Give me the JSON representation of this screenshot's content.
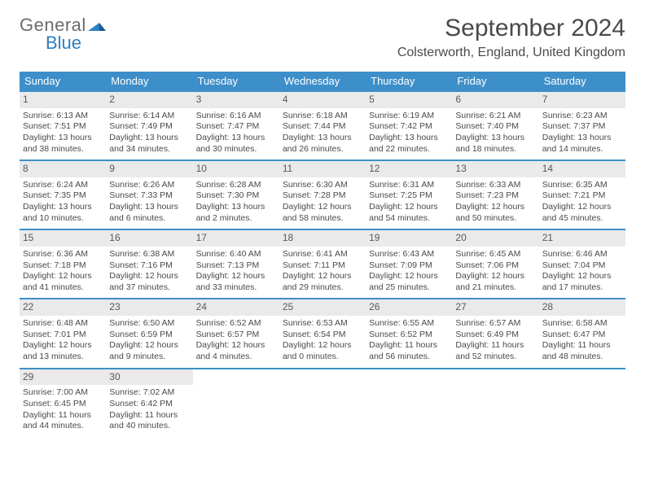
{
  "brand": {
    "top": "General",
    "bottom": "Blue"
  },
  "title": "September 2024",
  "location": "Colsterworth, England, United Kingdom",
  "colors": {
    "accent": "#3d8fc9",
    "header_bg": "#3d8fc9",
    "day_bg": "#eaeaea",
    "text": "#4a4a4a",
    "brand_blue": "#2f7fc2"
  },
  "days_of_week": [
    "Sunday",
    "Monday",
    "Tuesday",
    "Wednesday",
    "Thursday",
    "Friday",
    "Saturday"
  ],
  "weeks": [
    [
      {
        "n": "1",
        "sr": "Sunrise: 6:13 AM",
        "ss": "Sunset: 7:51 PM",
        "dl1": "Daylight: 13 hours",
        "dl2": "and 38 minutes."
      },
      {
        "n": "2",
        "sr": "Sunrise: 6:14 AM",
        "ss": "Sunset: 7:49 PM",
        "dl1": "Daylight: 13 hours",
        "dl2": "and 34 minutes."
      },
      {
        "n": "3",
        "sr": "Sunrise: 6:16 AM",
        "ss": "Sunset: 7:47 PM",
        "dl1": "Daylight: 13 hours",
        "dl2": "and 30 minutes."
      },
      {
        "n": "4",
        "sr": "Sunrise: 6:18 AM",
        "ss": "Sunset: 7:44 PM",
        "dl1": "Daylight: 13 hours",
        "dl2": "and 26 minutes."
      },
      {
        "n": "5",
        "sr": "Sunrise: 6:19 AM",
        "ss": "Sunset: 7:42 PM",
        "dl1": "Daylight: 13 hours",
        "dl2": "and 22 minutes."
      },
      {
        "n": "6",
        "sr": "Sunrise: 6:21 AM",
        "ss": "Sunset: 7:40 PM",
        "dl1": "Daylight: 13 hours",
        "dl2": "and 18 minutes."
      },
      {
        "n": "7",
        "sr": "Sunrise: 6:23 AM",
        "ss": "Sunset: 7:37 PM",
        "dl1": "Daylight: 13 hours",
        "dl2": "and 14 minutes."
      }
    ],
    [
      {
        "n": "8",
        "sr": "Sunrise: 6:24 AM",
        "ss": "Sunset: 7:35 PM",
        "dl1": "Daylight: 13 hours",
        "dl2": "and 10 minutes."
      },
      {
        "n": "9",
        "sr": "Sunrise: 6:26 AM",
        "ss": "Sunset: 7:33 PM",
        "dl1": "Daylight: 13 hours",
        "dl2": "and 6 minutes."
      },
      {
        "n": "10",
        "sr": "Sunrise: 6:28 AM",
        "ss": "Sunset: 7:30 PM",
        "dl1": "Daylight: 13 hours",
        "dl2": "and 2 minutes."
      },
      {
        "n": "11",
        "sr": "Sunrise: 6:30 AM",
        "ss": "Sunset: 7:28 PM",
        "dl1": "Daylight: 12 hours",
        "dl2": "and 58 minutes."
      },
      {
        "n": "12",
        "sr": "Sunrise: 6:31 AM",
        "ss": "Sunset: 7:25 PM",
        "dl1": "Daylight: 12 hours",
        "dl2": "and 54 minutes."
      },
      {
        "n": "13",
        "sr": "Sunrise: 6:33 AM",
        "ss": "Sunset: 7:23 PM",
        "dl1": "Daylight: 12 hours",
        "dl2": "and 50 minutes."
      },
      {
        "n": "14",
        "sr": "Sunrise: 6:35 AM",
        "ss": "Sunset: 7:21 PM",
        "dl1": "Daylight: 12 hours",
        "dl2": "and 45 minutes."
      }
    ],
    [
      {
        "n": "15",
        "sr": "Sunrise: 6:36 AM",
        "ss": "Sunset: 7:18 PM",
        "dl1": "Daylight: 12 hours",
        "dl2": "and 41 minutes."
      },
      {
        "n": "16",
        "sr": "Sunrise: 6:38 AM",
        "ss": "Sunset: 7:16 PM",
        "dl1": "Daylight: 12 hours",
        "dl2": "and 37 minutes."
      },
      {
        "n": "17",
        "sr": "Sunrise: 6:40 AM",
        "ss": "Sunset: 7:13 PM",
        "dl1": "Daylight: 12 hours",
        "dl2": "and 33 minutes."
      },
      {
        "n": "18",
        "sr": "Sunrise: 6:41 AM",
        "ss": "Sunset: 7:11 PM",
        "dl1": "Daylight: 12 hours",
        "dl2": "and 29 minutes."
      },
      {
        "n": "19",
        "sr": "Sunrise: 6:43 AM",
        "ss": "Sunset: 7:09 PM",
        "dl1": "Daylight: 12 hours",
        "dl2": "and 25 minutes."
      },
      {
        "n": "20",
        "sr": "Sunrise: 6:45 AM",
        "ss": "Sunset: 7:06 PM",
        "dl1": "Daylight: 12 hours",
        "dl2": "and 21 minutes."
      },
      {
        "n": "21",
        "sr": "Sunrise: 6:46 AM",
        "ss": "Sunset: 7:04 PM",
        "dl1": "Daylight: 12 hours",
        "dl2": "and 17 minutes."
      }
    ],
    [
      {
        "n": "22",
        "sr": "Sunrise: 6:48 AM",
        "ss": "Sunset: 7:01 PM",
        "dl1": "Daylight: 12 hours",
        "dl2": "and 13 minutes."
      },
      {
        "n": "23",
        "sr": "Sunrise: 6:50 AM",
        "ss": "Sunset: 6:59 PM",
        "dl1": "Daylight: 12 hours",
        "dl2": "and 9 minutes."
      },
      {
        "n": "24",
        "sr": "Sunrise: 6:52 AM",
        "ss": "Sunset: 6:57 PM",
        "dl1": "Daylight: 12 hours",
        "dl2": "and 4 minutes."
      },
      {
        "n": "25",
        "sr": "Sunrise: 6:53 AM",
        "ss": "Sunset: 6:54 PM",
        "dl1": "Daylight: 12 hours",
        "dl2": "and 0 minutes."
      },
      {
        "n": "26",
        "sr": "Sunrise: 6:55 AM",
        "ss": "Sunset: 6:52 PM",
        "dl1": "Daylight: 11 hours",
        "dl2": "and 56 minutes."
      },
      {
        "n": "27",
        "sr": "Sunrise: 6:57 AM",
        "ss": "Sunset: 6:49 PM",
        "dl1": "Daylight: 11 hours",
        "dl2": "and 52 minutes."
      },
      {
        "n": "28",
        "sr": "Sunrise: 6:58 AM",
        "ss": "Sunset: 6:47 PM",
        "dl1": "Daylight: 11 hours",
        "dl2": "and 48 minutes."
      }
    ],
    [
      {
        "n": "29",
        "sr": "Sunrise: 7:00 AM",
        "ss": "Sunset: 6:45 PM",
        "dl1": "Daylight: 11 hours",
        "dl2": "and 44 minutes."
      },
      {
        "n": "30",
        "sr": "Sunrise: 7:02 AM",
        "ss": "Sunset: 6:42 PM",
        "dl1": "Daylight: 11 hours",
        "dl2": "and 40 minutes."
      },
      {
        "empty": true
      },
      {
        "empty": true
      },
      {
        "empty": true
      },
      {
        "empty": true
      },
      {
        "empty": true
      }
    ]
  ]
}
